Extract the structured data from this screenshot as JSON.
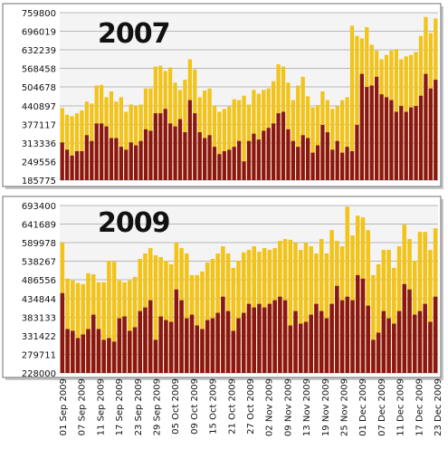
{
  "chart_data": [
    {
      "type": "bar",
      "title": "2007",
      "stacked_overlay": true,
      "grid": true,
      "ylim": [
        185775,
        759800
      ],
      "yticks": [
        "759800",
        "696019",
        "632239",
        "568458",
        "504678",
        "440897",
        "377117",
        "313336",
        "249556",
        "185775"
      ],
      "series": [
        {
          "color": "#f2c318",
          "values": [
            433000,
            410000,
            405000,
            415000,
            425000,
            455000,
            448000,
            510000,
            512000,
            470000,
            490000,
            455000,
            470000,
            420000,
            445000,
            440000,
            445000,
            500000,
            500000,
            575000,
            578000,
            560000,
            572000,
            520000,
            495000,
            530000,
            600000,
            565000,
            470000,
            493000,
            500000,
            440000,
            420000,
            430000,
            438000,
            463000,
            460000,
            475000,
            445000,
            495000,
            482000,
            495000,
            500000,
            525000,
            583000,
            575000,
            520000,
            460000,
            510000,
            540000,
            473000,
            435000,
            443000,
            490000,
            460000,
            430000,
            440000,
            460000,
            470000,
            715000,
            680000,
            672000,
            710000,
            650000,
            630000,
            600000,
            615000,
            630000,
            635000,
            600000,
            610000,
            615000,
            625000,
            680000,
            745000,
            690000,
            740000
          ]
        },
        {
          "color": "#8b1710",
          "values": [
            315000,
            290000,
            270000,
            285000,
            285000,
            340000,
            320000,
            380000,
            380000,
            370000,
            330000,
            330000,
            300000,
            290000,
            315000,
            305000,
            320000,
            360000,
            355000,
            415000,
            415000,
            430000,
            380000,
            370000,
            395000,
            350000,
            460000,
            415000,
            350000,
            330000,
            340000,
            300000,
            275000,
            285000,
            290000,
            300000,
            320000,
            250000,
            320000,
            345000,
            325000,
            355000,
            365000,
            380000,
            415000,
            420000,
            360000,
            320000,
            300000,
            340000,
            330000,
            280000,
            305000,
            375000,
            350000,
            290000,
            320000,
            280000,
            300000,
            285000,
            375000,
            550000,
            505000,
            510000,
            540000,
            480000,
            470000,
            460000,
            420000,
            440000,
            420000,
            435000,
            440000,
            475000,
            550000,
            500000,
            530000
          ]
        }
      ]
    },
    {
      "type": "bar",
      "title": "2009",
      "stacked_overlay": true,
      "grid": true,
      "ylim": [
        228000,
        693400
      ],
      "yticks": [
        "693400",
        "641689",
        "589978",
        "538267",
        "486556",
        "434844",
        "383133",
        "331422",
        "279711",
        "228000"
      ],
      "xlabels": [
        "01 Sep 2009",
        "07 Sep 2009",
        "11 Sep 2009",
        "17 Sep 2009",
        "23 Sep 2009",
        "29 Sep 2009",
        "05 Oct 2009",
        "09 Oct 2009",
        "15 Oct 2009",
        "21 Oct 2009",
        "27 Oct 2009",
        "02 Nov 2009",
        "09 Nov 2009",
        "13 Nov 2009",
        "19 Nov 2009",
        "25 Nov 2009",
        "01 Dec 2009",
        "07 Dec 2009",
        "11 Dec 2009",
        "17 Dec 2009",
        "23 Dec 2009"
      ],
      "series": [
        {
          "color": "#f2c318",
          "values": [
            590000,
            490000,
            485000,
            478000,
            475000,
            505000,
            502000,
            480000,
            480000,
            540000,
            537000,
            485000,
            480000,
            485000,
            495000,
            545000,
            560000,
            575000,
            555000,
            550000,
            540000,
            530000,
            590000,
            575000,
            560000,
            500000,
            500000,
            510000,
            535000,
            545000,
            560000,
            580000,
            560000,
            520000,
            540000,
            563000,
            570000,
            580000,
            565000,
            575000,
            570000,
            575000,
            595000,
            600000,
            598000,
            590000,
            570000,
            590000,
            580000,
            560000,
            600000,
            560000,
            625000,
            595000,
            580000,
            690000,
            610000,
            665000,
            660000,
            625000,
            500000,
            530000,
            570000,
            570000,
            520000,
            580000,
            640000,
            600000,
            540000,
            620000,
            620000,
            570000,
            630000
          ]
        },
        {
          "color": "#8b1710",
          "values": [
            450000,
            350000,
            345000,
            325000,
            335000,
            350000,
            390000,
            350000,
            320000,
            325000,
            315000,
            380000,
            385000,
            345000,
            355000,
            400000,
            410000,
            430000,
            320000,
            385000,
            375000,
            370000,
            460000,
            430000,
            380000,
            390000,
            360000,
            350000,
            375000,
            380000,
            395000,
            440000,
            400000,
            345000,
            380000,
            395000,
            420000,
            410000,
            420000,
            410000,
            420000,
            430000,
            440000,
            430000,
            360000,
            400000,
            365000,
            370000,
            390000,
            420000,
            400000,
            380000,
            420000,
            470000,
            430000,
            440000,
            430000,
            500000,
            490000,
            415000,
            320000,
            340000,
            400000,
            380000,
            365000,
            400000,
            475000,
            460000,
            390000,
            400000,
            420000,
            370000,
            440000
          ]
        }
      ]
    }
  ]
}
